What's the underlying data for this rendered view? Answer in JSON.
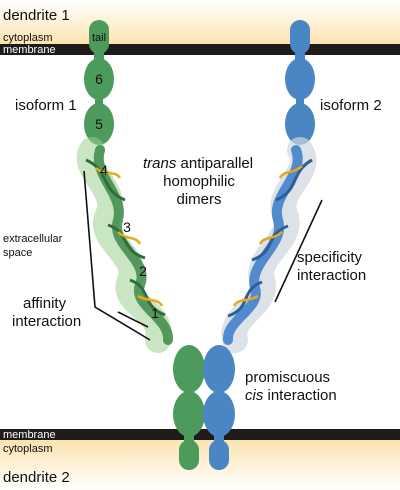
{
  "labels": {
    "dendrite_top": "dendrite 1",
    "cytoplasm_top": "cytoplasm",
    "membrane_top": "membrane",
    "membrane_bottom": "membrane",
    "cytoplasm_bottom": "cytoplasm",
    "dendrite_bottom": "dendrite 2",
    "isoform_left": "isoform 1",
    "isoform_right": "isoform 2",
    "trans_italic": "trans",
    "trans_rest": " antiparallel",
    "homophilic": "homophilic",
    "dimers": "dimers",
    "extracellular_1": "extracellular",
    "extracellular_2": "space",
    "specificity_1": "specificity",
    "specificity_2": "interaction",
    "affinity_1": "affinity",
    "affinity_2": "interaction",
    "promiscuous": "promiscuous",
    "cis_italic": "cis",
    "cis_rest": " interaction"
  },
  "domains": {
    "tail": "tail",
    "d6": "6",
    "d5": "5",
    "d4": "4",
    "d3": "3",
    "d2": "2",
    "d1": "1"
  },
  "colors": {
    "isoform1": "#4c9a5c",
    "isoform1_dark": "#2f6e3b",
    "isoform2": "#4a86c4",
    "isoform2_dark": "#2d5f97",
    "membrane": "#1e1b18",
    "cytoplasm_top": "#fbe3b0",
    "accent": "#e8a91b"
  }
}
